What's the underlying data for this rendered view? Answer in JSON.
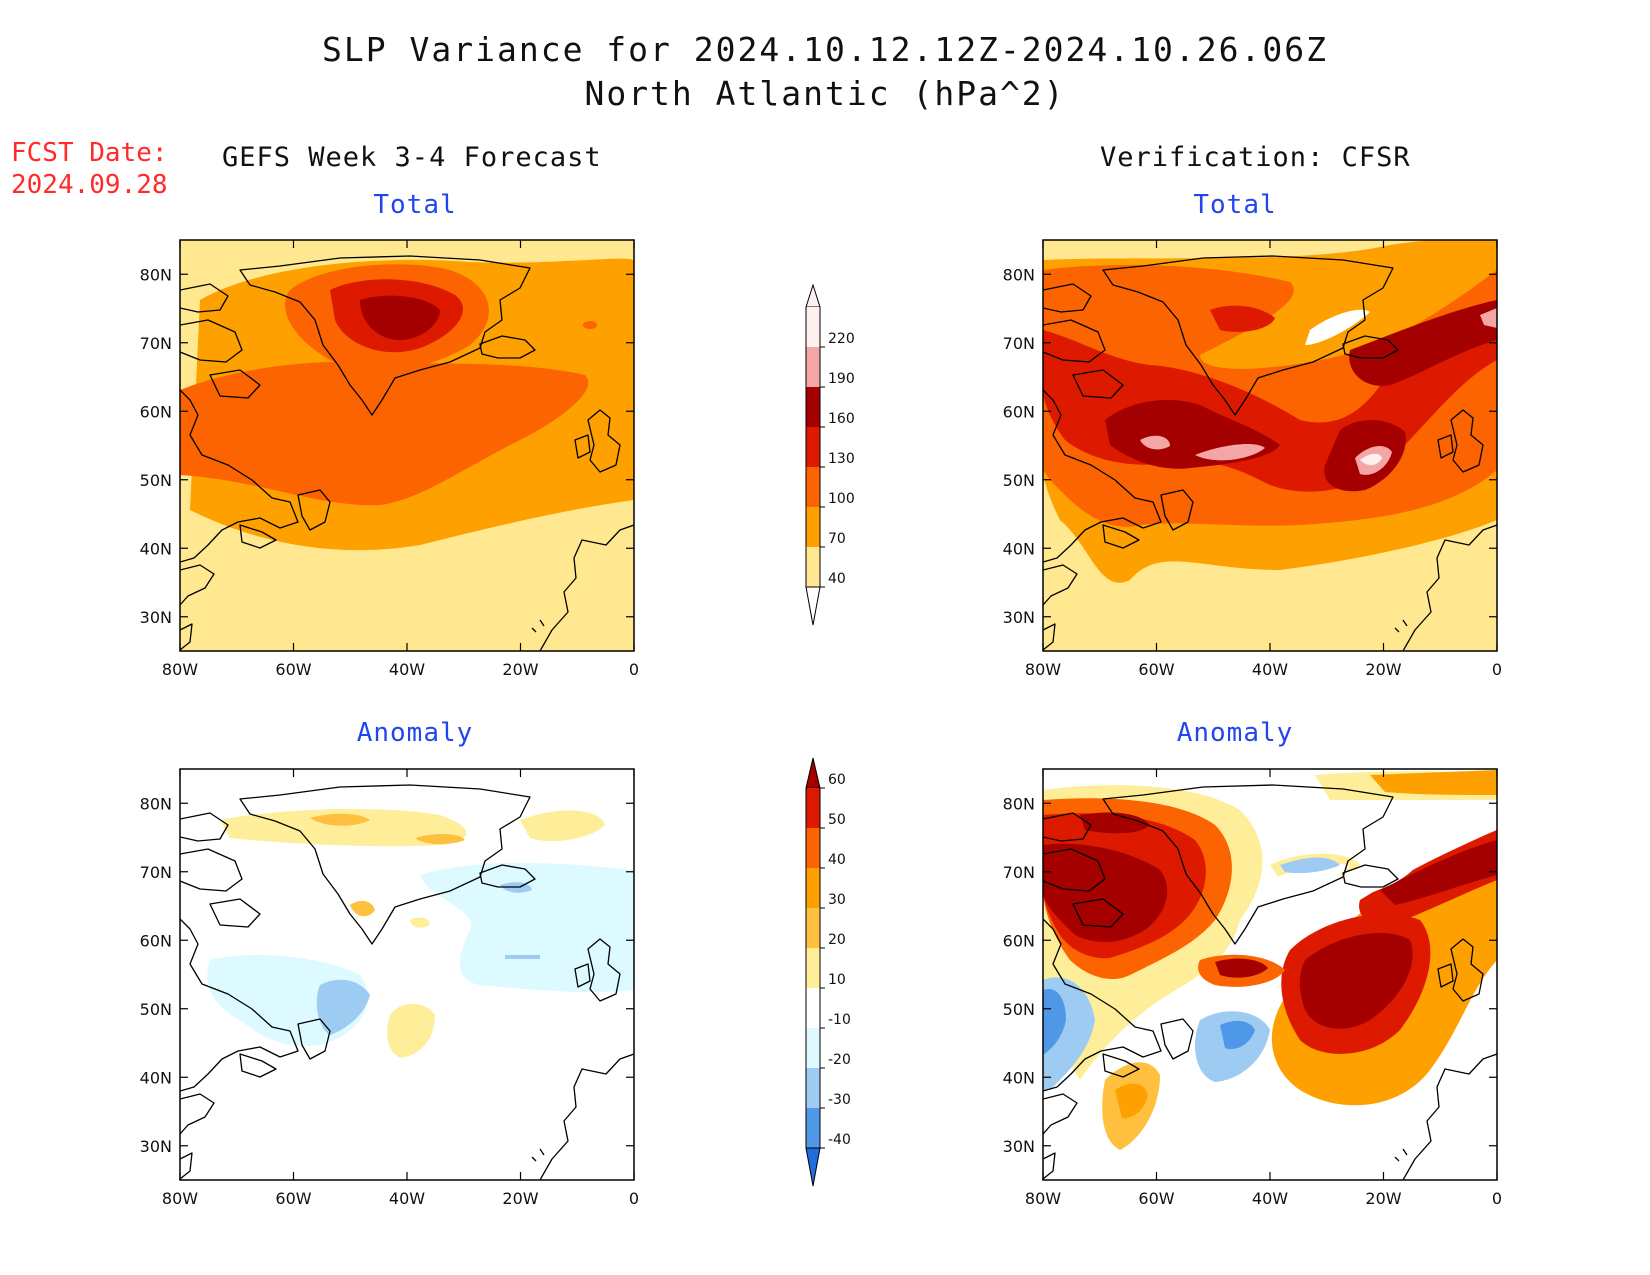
{
  "title_line1": "SLP Variance for 2024.10.12.12Z-2024.10.26.06Z",
  "title_line2": "North Atlantic (hPa^2)",
  "fcst_label": "FCST Date:",
  "fcst_value": "2024.09.28",
  "left_header": "GEFS Week 3-4 Forecast",
  "right_header": "Verification: CFSR",
  "panels": {
    "fc_total": {
      "subtitle": "Total"
    },
    "vf_total": {
      "subtitle": "Total"
    },
    "fc_anom": {
      "subtitle": "Anomaly"
    },
    "vf_anom": {
      "subtitle": "Anomaly"
    }
  },
  "axes": {
    "lon_ticks": [
      "80W",
      "60W",
      "40W",
      "20W",
      "0"
    ],
    "lat_ticks": [
      "80N",
      "70N",
      "60N",
      "50N",
      "40N",
      "30N"
    ],
    "lon_range": [
      -80,
      0
    ],
    "lat_range": [
      25,
      85
    ]
  },
  "colorbar_total": {
    "levels": [
      "220",
      "190",
      "160",
      "130",
      "100",
      "70",
      "40"
    ],
    "colors": [
      "#fff0f0",
      "#f4a6a6",
      "#a40000",
      "#dd1a00",
      "#fb6400",
      "#fea100",
      "#ffe890"
    ]
  },
  "colorbar_anom": {
    "levels": [
      "60",
      "50",
      "40",
      "30",
      "20",
      "10",
      "-10",
      "-20",
      "-30",
      "-40"
    ],
    "colors": [
      "#a40000",
      "#dd1a00",
      "#fb6400",
      "#fea100",
      "#ffc040",
      "#ffee99",
      "#ffffff",
      "#dcfaff",
      "#9ecbf2",
      "#4f98e8",
      "#1c6fdc"
    ]
  }
}
